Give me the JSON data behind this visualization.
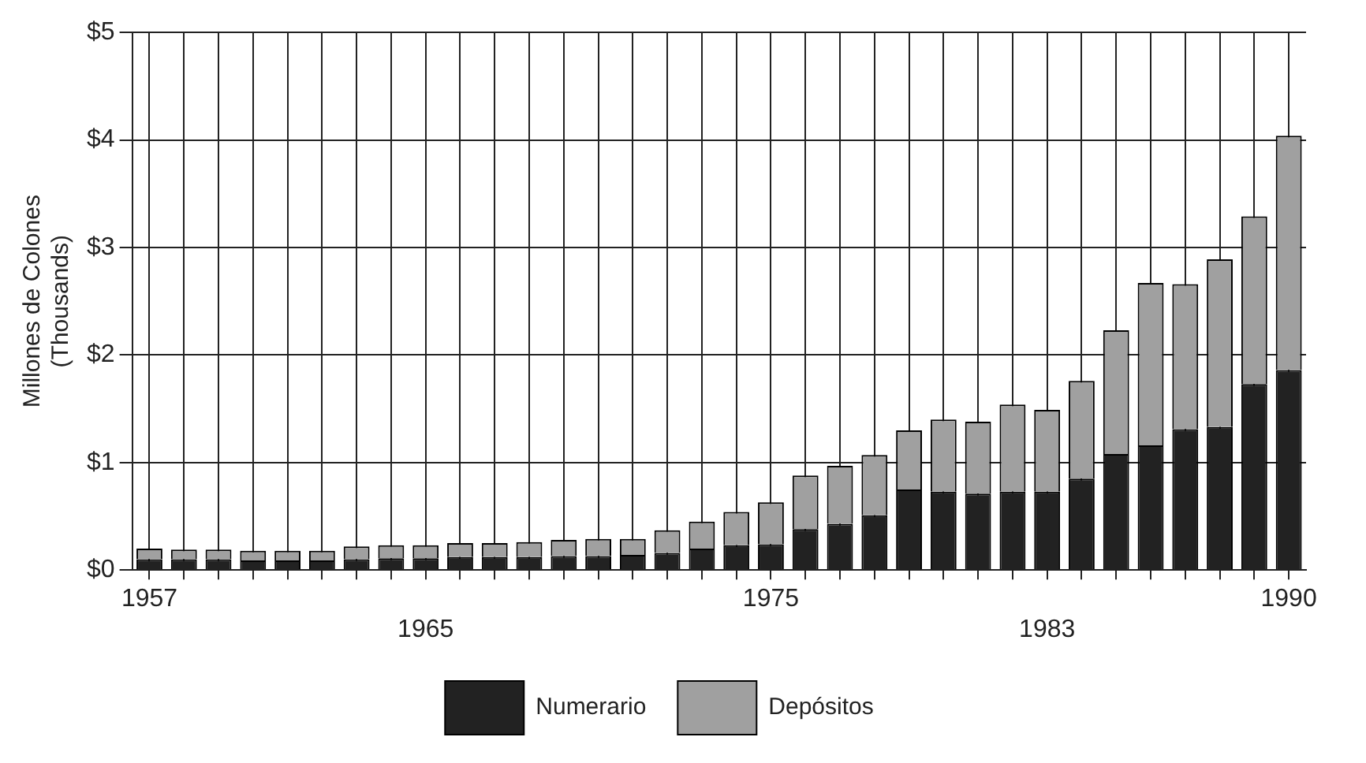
{
  "chart_data": {
    "type": "bar",
    "stacked": true,
    "ylabel": "Millones de Colones\n(Thousands)",
    "categories": [
      "1957",
      null,
      null,
      null,
      null,
      null,
      null,
      null,
      "1965",
      null,
      null,
      null,
      null,
      null,
      null,
      null,
      null,
      null,
      "1975",
      null,
      null,
      null,
      null,
      null,
      null,
      null,
      "1983",
      null,
      null,
      null,
      null,
      null,
      null,
      "1990"
    ],
    "series": [
      {
        "name": "Numerario",
        "color": "#222222",
        "values": [
          0.1,
          0.1,
          0.1,
          0.09,
          0.09,
          0.09,
          0.1,
          0.11,
          0.11,
          0.12,
          0.12,
          0.12,
          0.13,
          0.13,
          0.14,
          0.16,
          0.2,
          0.23,
          0.24,
          0.38,
          0.43,
          0.51,
          0.75,
          0.73,
          0.71,
          0.73,
          0.73,
          0.85,
          1.08,
          1.16,
          1.31,
          1.33,
          1.73,
          1.86
        ]
      },
      {
        "name": "Depósitos",
        "color": "#a0a0a0",
        "values": [
          0.1,
          0.09,
          0.09,
          0.09,
          0.09,
          0.09,
          0.12,
          0.12,
          0.12,
          0.13,
          0.13,
          0.14,
          0.15,
          0.16,
          0.15,
          0.21,
          0.25,
          0.31,
          0.39,
          0.5,
          0.54,
          0.56,
          0.55,
          0.67,
          0.67,
          0.81,
          0.76,
          0.91,
          1.15,
          1.51,
          1.35,
          1.56,
          1.56,
          2.18
        ]
      }
    ],
    "ylim": [
      0,
      5
    ],
    "yticks": [
      {
        "value": 0,
        "label": "$0"
      },
      {
        "value": 1,
        "label": "$1"
      },
      {
        "value": 2,
        "label": "$2"
      },
      {
        "value": 3,
        "label": "$3"
      },
      {
        "value": 4,
        "label": "$4"
      },
      {
        "value": 5,
        "label": "$5"
      }
    ],
    "grid": true,
    "legend": "bottom"
  }
}
